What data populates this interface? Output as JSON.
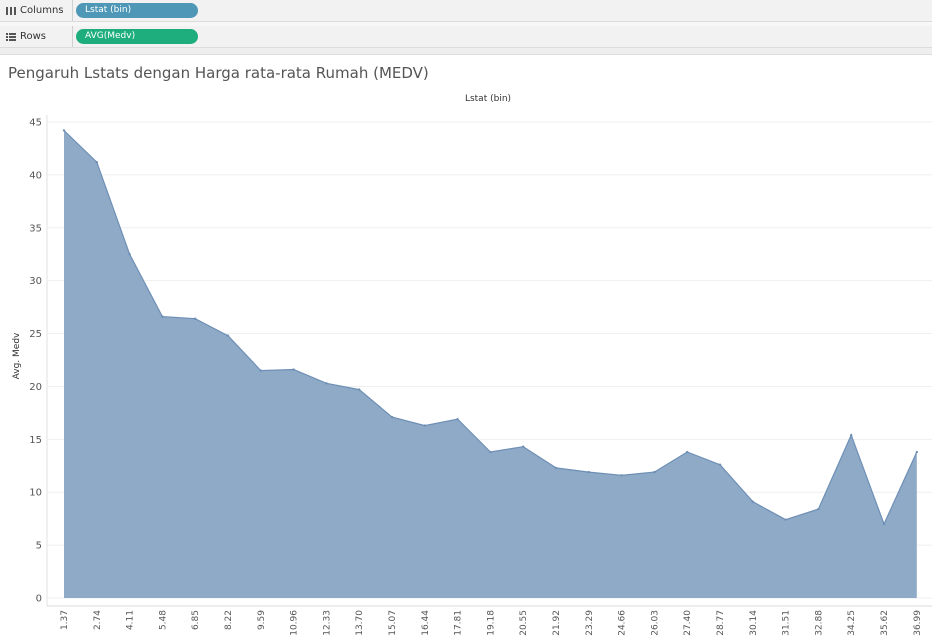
{
  "shelves": {
    "columns": {
      "label": "Columns",
      "pill": "Lstat (bin)",
      "icon": "columns-icon"
    },
    "rows": {
      "label": "Rows",
      "pill": "AVG(Medv)",
      "icon": "rows-icon"
    }
  },
  "colors": {
    "area": "#8eaac7",
    "line": "#6e8fb5",
    "dimension_pill": "#4e97b6",
    "measure_pill": "#1eae7d"
  },
  "chart_data": {
    "type": "area",
    "title": "Pengaruh Lstats dengan Harga rata-rata Rumah (MEDV)",
    "xlabel": "Lstat (bin)",
    "ylabel": "Avg. Medv",
    "x": [
      "1.37",
      "2.74",
      "4.11",
      "5.48",
      "6.85",
      "8.22",
      "9.59",
      "10.96",
      "12.33",
      "13.70",
      "15.07",
      "16.44",
      "17.81",
      "19.18",
      "20.55",
      "21.92",
      "23.29",
      "24.66",
      "26.03",
      "27.40",
      "28.77",
      "30.14",
      "31.51",
      "32.88",
      "34.25",
      "35.62",
      "36.99"
    ],
    "values": [
      44.2,
      41.2,
      32.5,
      26.6,
      26.4,
      24.8,
      21.5,
      21.6,
      20.3,
      19.7,
      17.1,
      16.3,
      16.9,
      13.8,
      14.3,
      12.3,
      11.9,
      11.6,
      11.9,
      13.8,
      12.6,
      9.1,
      7.4,
      8.4,
      15.4,
      7.0,
      13.8
    ],
    "ylim": [
      0,
      45
    ],
    "yticks": [
      0,
      5,
      10,
      15,
      20,
      25,
      30,
      35,
      40,
      45
    ],
    "grid": true,
    "legend": "none"
  }
}
